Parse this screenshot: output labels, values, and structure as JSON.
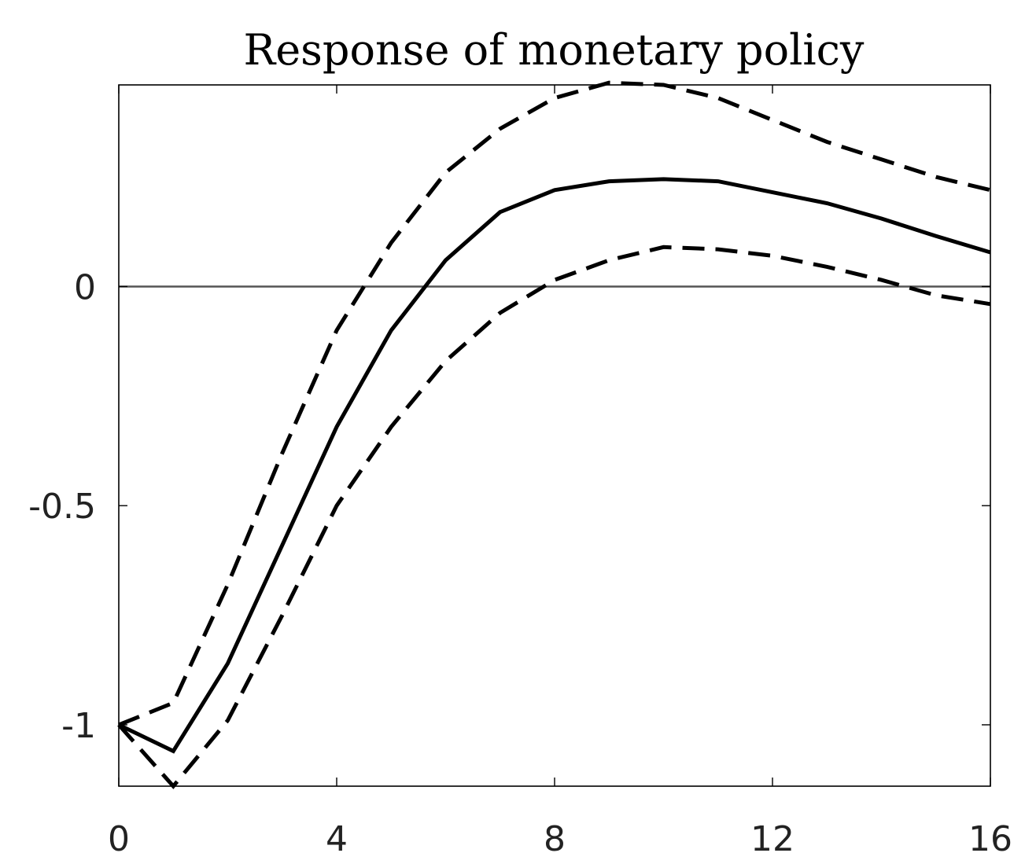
{
  "chart_data": {
    "type": "line",
    "title": "Response of monetary policy",
    "xlabel": "",
    "ylabel": "",
    "xlim": [
      0,
      16
    ],
    "ylim": [
      -1.14,
      0.46
    ],
    "x_ticks": [
      0,
      4,
      8,
      12,
      16
    ],
    "x_tick_labels": [
      "0",
      "4",
      "8",
      "12",
      "16"
    ],
    "y_ticks": [
      -1,
      -0.5,
      0
    ],
    "y_tick_labels": [
      "-1",
      "-0.5",
      "0"
    ],
    "reference_line": 0,
    "grid": false,
    "legend": "none",
    "x": [
      0,
      1,
      2,
      3,
      4,
      5,
      6,
      7,
      8,
      9,
      10,
      11,
      12,
      13,
      14,
      15,
      16
    ],
    "series": [
      {
        "style": "solid",
        "values": [
          -1.0,
          -1.06,
          -0.86,
          -0.59,
          -0.32,
          -0.1,
          0.06,
          0.17,
          0.22,
          0.24,
          0.245,
          0.24,
          0.215,
          0.19,
          0.155,
          0.115,
          0.078
        ]
      },
      {
        "style": "dashed",
        "values": [
          -1.0,
          -0.95,
          -0.68,
          -0.38,
          -0.1,
          0.1,
          0.26,
          0.36,
          0.43,
          0.465,
          0.46,
          0.43,
          0.38,
          0.33,
          0.29,
          0.25,
          0.22
        ]
      },
      {
        "style": "dashed",
        "values": [
          -1.0,
          -1.14,
          -0.99,
          -0.75,
          -0.5,
          -0.32,
          -0.17,
          -0.06,
          0.015,
          0.06,
          0.09,
          0.085,
          0.07,
          0.045,
          0.015,
          -0.02,
          -0.04
        ]
      }
    ]
  }
}
